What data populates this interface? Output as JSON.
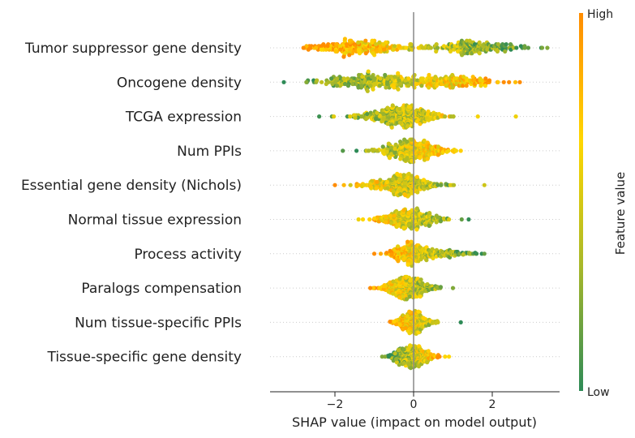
{
  "chart_data": {
    "type": "scatter",
    "subtype": "shap-beeswarm",
    "title": "",
    "xlabel": "SHAP value (impact on model output)",
    "ylabel": "",
    "xlim": [
      -3.6,
      3.8
    ],
    "xticks": [
      -2,
      0,
      2
    ],
    "xtick_labels": [
      "−2",
      "0",
      "2"
    ],
    "grid": false,
    "colorbar": {
      "title": "Feature value",
      "high_label": "High",
      "low_label": "Low",
      "colors": [
        "#2e8b57",
        "#a8b82a",
        "#ffd700",
        "#ff8c00"
      ]
    },
    "features": [
      {
        "name": "Tumor suppressor gene density",
        "min": -2.8,
        "max": 3.4,
        "modes": [
          {
            "c": -1.5,
            "s": 0.55,
            "w": 0.55
          },
          {
            "c": 1.5,
            "s": 0.75,
            "w": 0.45
          }
        ],
        "color_trend": -1.0,
        "max_height": 0.38
      },
      {
        "name": "Oncogene density",
        "min": -3.3,
        "max": 2.7,
        "modes": [
          {
            "c": -1.2,
            "s": 0.6,
            "w": 0.55
          },
          {
            "c": 0.8,
            "s": 0.7,
            "w": 0.45
          }
        ],
        "color_trend": 0.9,
        "max_height": 0.36
      },
      {
        "name": "TCGA expression",
        "min": -2.4,
        "max": 2.6,
        "modes": [
          {
            "c": -0.3,
            "s": 0.55,
            "w": 1.0
          }
        ],
        "color_trend": 0.5,
        "max_height": 0.34
      },
      {
        "name": "Num PPIs",
        "min": -1.8,
        "max": 1.2,
        "modes": [
          {
            "c": -0.1,
            "s": 0.45,
            "w": 1.0
          }
        ],
        "color_trend": 0.8,
        "max_height": 0.34
      },
      {
        "name": "Essential gene density (Nichols)",
        "min": -2.0,
        "max": 1.8,
        "modes": [
          {
            "c": -0.25,
            "s": 0.45,
            "w": 1.0
          }
        ],
        "color_trend": -0.6,
        "max_height": 0.34
      },
      {
        "name": "Normal tissue expression",
        "min": -1.4,
        "max": 1.4,
        "modes": [
          {
            "c": -0.1,
            "s": 0.4,
            "w": 1.0
          }
        ],
        "color_trend": -0.7,
        "max_height": 0.32
      },
      {
        "name": "Process activity",
        "min": -1.0,
        "max": 1.8,
        "modes": [
          {
            "c": -0.1,
            "s": 0.25,
            "w": 0.7
          },
          {
            "c": 0.8,
            "s": 0.45,
            "w": 0.3
          }
        ],
        "color_trend": -0.9,
        "max_height": 0.36
      },
      {
        "name": "Paralogs compensation",
        "min": -1.1,
        "max": 1.0,
        "modes": [
          {
            "c": -0.15,
            "s": 0.3,
            "w": 1.0
          }
        ],
        "color_trend": -0.8,
        "max_height": 0.34
      },
      {
        "name": "Num tissue-specific PPIs",
        "min": -0.6,
        "max": 1.2,
        "modes": [
          {
            "c": 0.0,
            "s": 0.22,
            "w": 1.0
          }
        ],
        "color_trend": -0.8,
        "max_height": 0.34
      },
      {
        "name": "Tissue-specific gene density",
        "min": -0.8,
        "max": 0.9,
        "modes": [
          {
            "c": -0.05,
            "s": 0.28,
            "w": 1.0
          }
        ],
        "color_trend": 0.8,
        "max_height": 0.34
      }
    ]
  }
}
